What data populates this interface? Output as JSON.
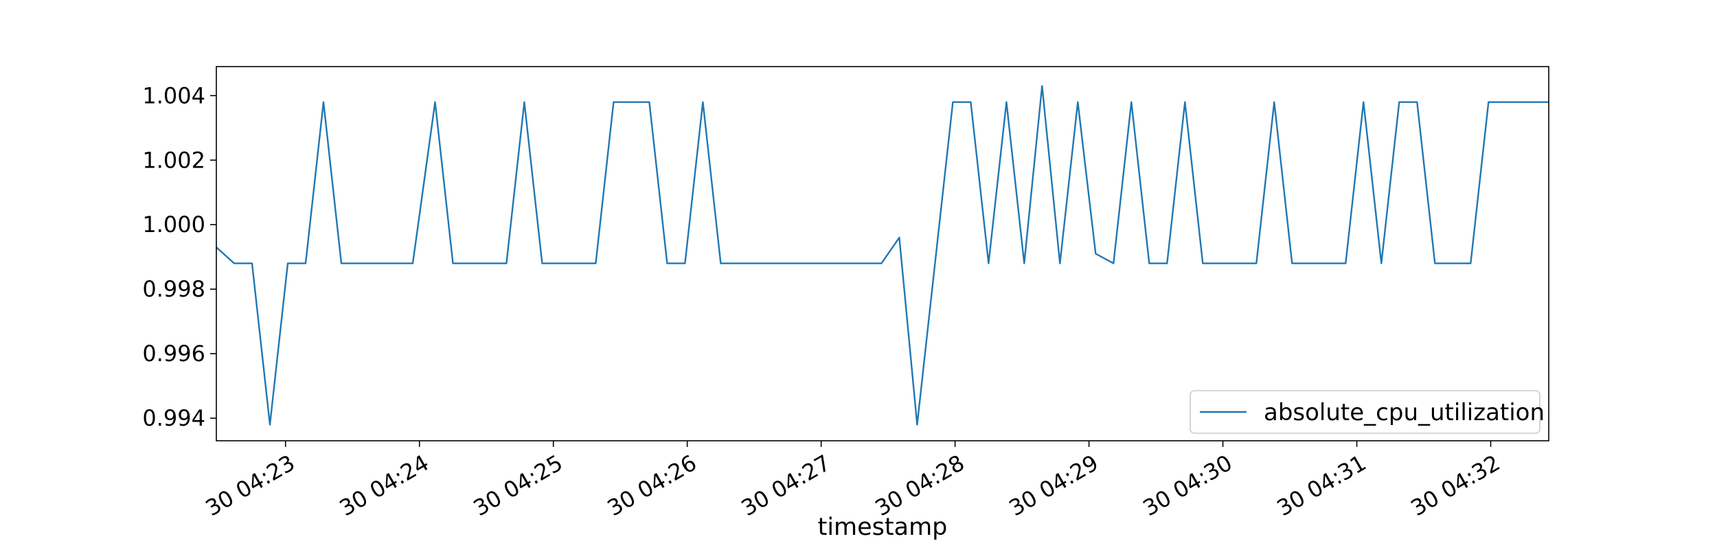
{
  "chart_data": {
    "type": "line",
    "title": "",
    "xlabel": "timestamp",
    "ylabel": "",
    "x_unit": "minutes_since_04:22:29",
    "xlim": [
      0,
      597
    ],
    "ylim": [
      0.9933,
      1.0049
    ],
    "x_ticks": [
      {
        "value": 31,
        "label": "30 04:23"
      },
      {
        "value": 91,
        "label": "30 04:24"
      },
      {
        "value": 151,
        "label": "30 04:25"
      },
      {
        "value": 211,
        "label": "30 04:26"
      },
      {
        "value": 271,
        "label": "30 04:27"
      },
      {
        "value": 331,
        "label": "30 04:28"
      },
      {
        "value": 391,
        "label": "30 04:29"
      },
      {
        "value": 451,
        "label": "30 04:30"
      },
      {
        "value": 511,
        "label": "30 04:31"
      },
      {
        "value": 571,
        "label": "30 04:32"
      }
    ],
    "y_ticks": [
      {
        "value": 0.994,
        "label": "0.994"
      },
      {
        "value": 0.996,
        "label": "0.996"
      },
      {
        "value": 0.998,
        "label": "0.998"
      },
      {
        "value": 1.0,
        "label": "1.000"
      },
      {
        "value": 1.002,
        "label": "1.002"
      },
      {
        "value": 1.004,
        "label": "1.004"
      }
    ],
    "grid": false,
    "legend_position": "bottom-right",
    "series": [
      {
        "name": "absolute_cpu_utilization",
        "color": "#1f77b4",
        "points": [
          [
            0,
            0.9993
          ],
          [
            8,
            0.9988
          ],
          [
            16,
            0.9988
          ],
          [
            24,
            0.9938
          ],
          [
            32,
            0.9988
          ],
          [
            40,
            0.9988
          ],
          [
            48,
            1.0038
          ],
          [
            56,
            0.9988
          ],
          [
            64,
            0.9988
          ],
          [
            72,
            0.9988
          ],
          [
            80,
            0.9988
          ],
          [
            88,
            0.9988
          ],
          [
            98,
            1.0038
          ],
          [
            106,
            0.9988
          ],
          [
            114,
            0.9988
          ],
          [
            122,
            0.9988
          ],
          [
            130,
            0.9988
          ],
          [
            138,
            1.0038
          ],
          [
            146,
            0.9988
          ],
          [
            154,
            0.9988
          ],
          [
            162,
            0.9988
          ],
          [
            170,
            0.9988
          ],
          [
            178,
            1.0038
          ],
          [
            186,
            1.0038
          ],
          [
            194,
            1.0038
          ],
          [
            202,
            0.9988
          ],
          [
            210,
            0.9988
          ],
          [
            218,
            1.0038
          ],
          [
            226,
            0.9988
          ],
          [
            234,
            0.9988
          ],
          [
            242,
            0.9988
          ],
          [
            250,
            0.9988
          ],
          [
            258,
            0.9988
          ],
          [
            266,
            0.9988
          ],
          [
            274,
            0.9988
          ],
          [
            282,
            0.9988
          ],
          [
            290,
            0.9988
          ],
          [
            298,
            0.9988
          ],
          [
            306,
            0.9996
          ],
          [
            314,
            0.9938
          ],
          [
            322,
            0.9988
          ],
          [
            330,
            1.0038
          ],
          [
            338,
            1.0038
          ],
          [
            346,
            0.9988
          ],
          [
            354,
            1.0038
          ],
          [
            362,
            0.9988
          ],
          [
            370,
            1.0043
          ],
          [
            378,
            0.9988
          ],
          [
            386,
            1.0038
          ],
          [
            394,
            0.9991
          ],
          [
            402,
            0.9988
          ],
          [
            410,
            1.0038
          ],
          [
            418,
            0.9988
          ],
          [
            426,
            0.9988
          ],
          [
            434,
            1.0038
          ],
          [
            442,
            0.9988
          ],
          [
            450,
            0.9988
          ],
          [
            458,
            0.9988
          ],
          [
            466,
            0.9988
          ],
          [
            474,
            1.0038
          ],
          [
            482,
            0.9988
          ],
          [
            490,
            0.9988
          ],
          [
            498,
            0.9988
          ],
          [
            506,
            0.9988
          ],
          [
            514,
            1.0038
          ],
          [
            522,
            0.9988
          ],
          [
            530,
            1.0038
          ],
          [
            538,
            1.0038
          ],
          [
            546,
            0.9988
          ],
          [
            554,
            0.9988
          ],
          [
            562,
            0.9988
          ],
          [
            570,
            1.0038
          ],
          [
            578,
            1.0038
          ],
          [
            586,
            1.0038
          ],
          [
            594,
            1.0038
          ],
          [
            597,
            1.0038
          ]
        ]
      }
    ]
  }
}
